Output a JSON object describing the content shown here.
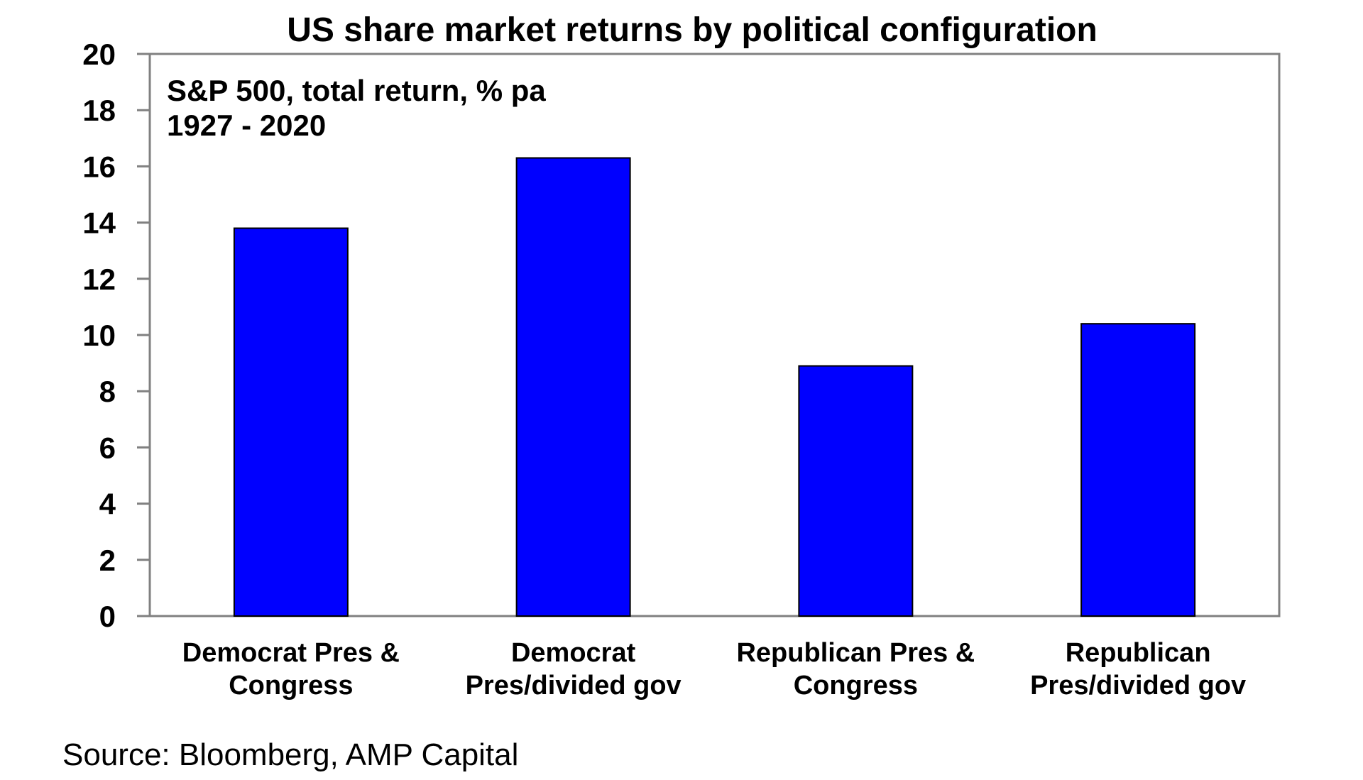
{
  "chart_data": {
    "type": "bar",
    "title": "US share market returns by political configuration",
    "annotation_lines": [
      "S&P 500, total return, % pa",
      "1927 - 2020"
    ],
    "categories": [
      [
        "Democrat Pres &",
        "Congress"
      ],
      [
        "Democrat",
        "Pres/divided gov"
      ],
      [
        "Republican Pres &",
        "Congress"
      ],
      [
        "Republican",
        "Pres/divided gov"
      ]
    ],
    "values": [
      13.8,
      16.3,
      8.9,
      10.4
    ],
    "ylim": [
      0,
      20
    ],
    "yticks": [
      0,
      2,
      4,
      6,
      8,
      10,
      12,
      14,
      16,
      18,
      20
    ],
    "xlabel": "",
    "ylabel": "",
    "grid": false,
    "bar_color": "#0000ff",
    "source": "Source: Bloomberg, AMP Capital"
  }
}
